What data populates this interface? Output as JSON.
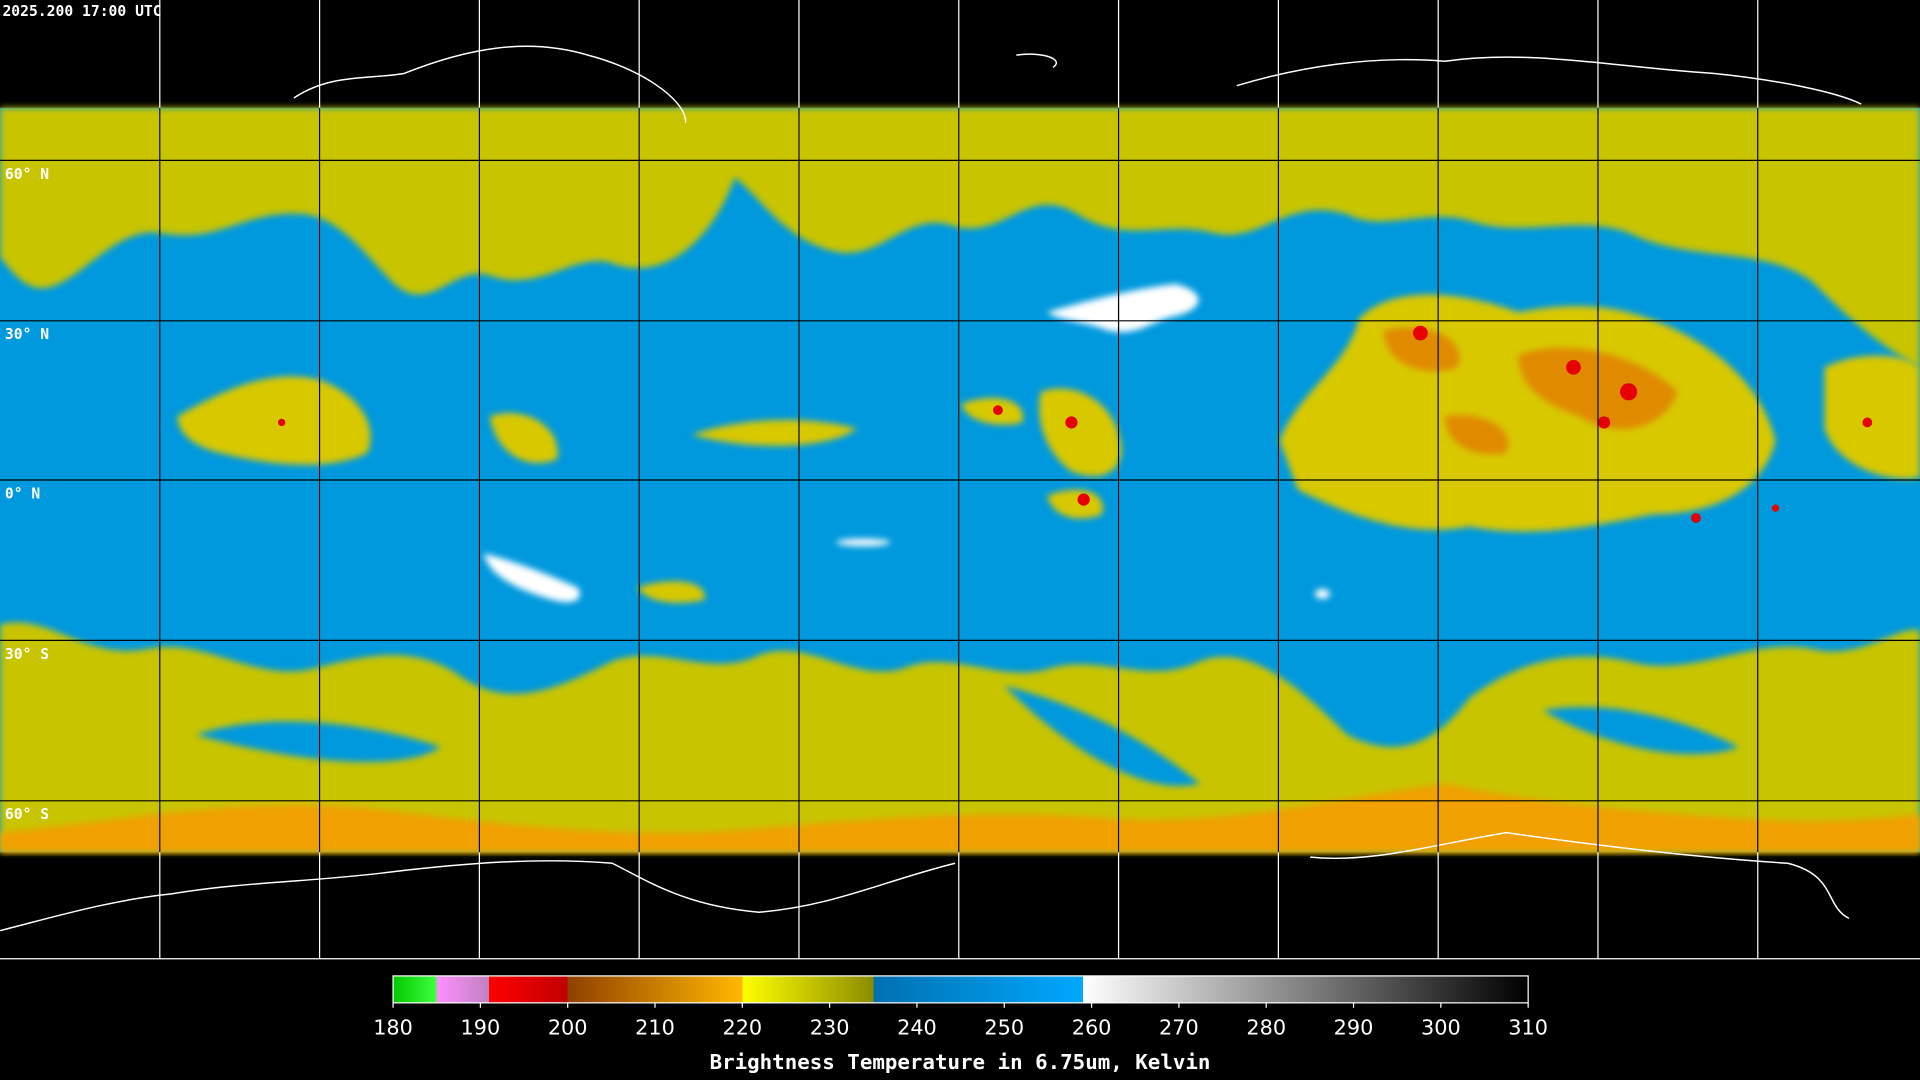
{
  "header": {
    "title": "2025.200 17:00 UTC"
  },
  "latitude_labels": [
    "60° N",
    "30° N",
    "0° N",
    "30° S",
    "60° S"
  ],
  "colorbar": {
    "range": [
      180,
      310
    ],
    "ticks": [
      180,
      190,
      200,
      210,
      220,
      230,
      240,
      250,
      260,
      270,
      280,
      290,
      300,
      310
    ],
    "label": "Brightness Temperature in 6.75um, Kelvin",
    "stops": [
      [
        180,
        "#00c800"
      ],
      [
        185,
        "#40ff40"
      ],
      [
        185,
        "#ff90ff"
      ],
      [
        191,
        "#c080c0"
      ],
      [
        191,
        "#ff0000"
      ],
      [
        200,
        "#c00000"
      ],
      [
        200,
        "#904000"
      ],
      [
        220,
        "#ffb800"
      ],
      [
        220,
        "#ffff00"
      ],
      [
        235,
        "#8c8c00"
      ],
      [
        235,
        "#0070b0"
      ],
      [
        259,
        "#00a8ff"
      ],
      [
        259,
        "#ffffff"
      ],
      [
        310,
        "#000000"
      ]
    ]
  }
}
